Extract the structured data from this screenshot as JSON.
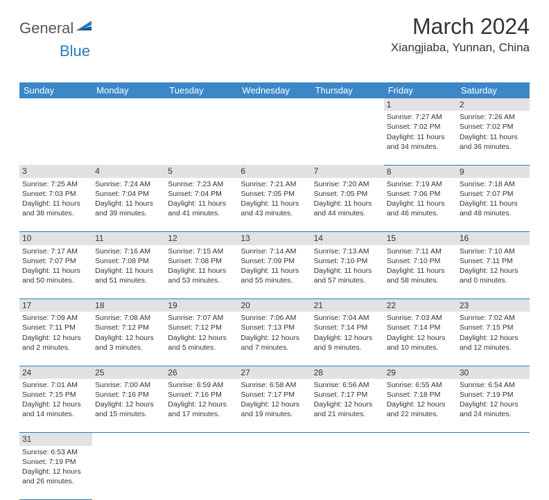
{
  "logo": {
    "part1": "General",
    "part2": "Blue"
  },
  "title": "March 2024",
  "location": "Xiangjiaba, Yunnan, China",
  "colors": {
    "header_bg": "#3b87c8",
    "header_fg": "#ffffff",
    "daynum_bg": "#e2e2e2",
    "rule": "#2a7ab9",
    "logo_accent": "#2a7ab9"
  },
  "weekdays": [
    "Sunday",
    "Monday",
    "Tuesday",
    "Wednesday",
    "Thursday",
    "Friday",
    "Saturday"
  ],
  "weeks": [
    [
      null,
      null,
      null,
      null,
      null,
      {
        "n": "1",
        "sr": "Sunrise: 7:27 AM",
        "ss": "Sunset: 7:02 PM",
        "dl": "Daylight: 11 hours and 34 minutes."
      },
      {
        "n": "2",
        "sr": "Sunrise: 7:26 AM",
        "ss": "Sunset: 7:02 PM",
        "dl": "Daylight: 11 hours and 36 minutes."
      }
    ],
    [
      {
        "n": "3",
        "sr": "Sunrise: 7:25 AM",
        "ss": "Sunset: 7:03 PM",
        "dl": "Daylight: 11 hours and 38 minutes."
      },
      {
        "n": "4",
        "sr": "Sunrise: 7:24 AM",
        "ss": "Sunset: 7:04 PM",
        "dl": "Daylight: 11 hours and 39 minutes."
      },
      {
        "n": "5",
        "sr": "Sunrise: 7:23 AM",
        "ss": "Sunset: 7:04 PM",
        "dl": "Daylight: 11 hours and 41 minutes."
      },
      {
        "n": "6",
        "sr": "Sunrise: 7:21 AM",
        "ss": "Sunset: 7:05 PM",
        "dl": "Daylight: 11 hours and 43 minutes."
      },
      {
        "n": "7",
        "sr": "Sunrise: 7:20 AM",
        "ss": "Sunset: 7:05 PM",
        "dl": "Daylight: 11 hours and 44 minutes."
      },
      {
        "n": "8",
        "sr": "Sunrise: 7:19 AM",
        "ss": "Sunset: 7:06 PM",
        "dl": "Daylight: 11 hours and 46 minutes."
      },
      {
        "n": "9",
        "sr": "Sunrise: 7:18 AM",
        "ss": "Sunset: 7:07 PM",
        "dl": "Daylight: 11 hours and 48 minutes."
      }
    ],
    [
      {
        "n": "10",
        "sr": "Sunrise: 7:17 AM",
        "ss": "Sunset: 7:07 PM",
        "dl": "Daylight: 11 hours and 50 minutes."
      },
      {
        "n": "11",
        "sr": "Sunrise: 7:16 AM",
        "ss": "Sunset: 7:08 PM",
        "dl": "Daylight: 11 hours and 51 minutes."
      },
      {
        "n": "12",
        "sr": "Sunrise: 7:15 AM",
        "ss": "Sunset: 7:08 PM",
        "dl": "Daylight: 11 hours and 53 minutes."
      },
      {
        "n": "13",
        "sr": "Sunrise: 7:14 AM",
        "ss": "Sunset: 7:09 PM",
        "dl": "Daylight: 11 hours and 55 minutes."
      },
      {
        "n": "14",
        "sr": "Sunrise: 7:13 AM",
        "ss": "Sunset: 7:10 PM",
        "dl": "Daylight: 11 hours and 57 minutes."
      },
      {
        "n": "15",
        "sr": "Sunrise: 7:11 AM",
        "ss": "Sunset: 7:10 PM",
        "dl": "Daylight: 11 hours and 58 minutes."
      },
      {
        "n": "16",
        "sr": "Sunrise: 7:10 AM",
        "ss": "Sunset: 7:11 PM",
        "dl": "Daylight: 12 hours and 0 minutes."
      }
    ],
    [
      {
        "n": "17",
        "sr": "Sunrise: 7:09 AM",
        "ss": "Sunset: 7:11 PM",
        "dl": "Daylight: 12 hours and 2 minutes."
      },
      {
        "n": "18",
        "sr": "Sunrise: 7:08 AM",
        "ss": "Sunset: 7:12 PM",
        "dl": "Daylight: 12 hours and 3 minutes."
      },
      {
        "n": "19",
        "sr": "Sunrise: 7:07 AM",
        "ss": "Sunset: 7:12 PM",
        "dl": "Daylight: 12 hours and 5 minutes."
      },
      {
        "n": "20",
        "sr": "Sunrise: 7:06 AM",
        "ss": "Sunset: 7:13 PM",
        "dl": "Daylight: 12 hours and 7 minutes."
      },
      {
        "n": "21",
        "sr": "Sunrise: 7:04 AM",
        "ss": "Sunset: 7:14 PM",
        "dl": "Daylight: 12 hours and 9 minutes."
      },
      {
        "n": "22",
        "sr": "Sunrise: 7:03 AM",
        "ss": "Sunset: 7:14 PM",
        "dl": "Daylight: 12 hours and 10 minutes."
      },
      {
        "n": "23",
        "sr": "Sunrise: 7:02 AM",
        "ss": "Sunset: 7:15 PM",
        "dl": "Daylight: 12 hours and 12 minutes."
      }
    ],
    [
      {
        "n": "24",
        "sr": "Sunrise: 7:01 AM",
        "ss": "Sunset: 7:15 PM",
        "dl": "Daylight: 12 hours and 14 minutes."
      },
      {
        "n": "25",
        "sr": "Sunrise: 7:00 AM",
        "ss": "Sunset: 7:16 PM",
        "dl": "Daylight: 12 hours and 15 minutes."
      },
      {
        "n": "26",
        "sr": "Sunrise: 6:59 AM",
        "ss": "Sunset: 7:16 PM",
        "dl": "Daylight: 12 hours and 17 minutes."
      },
      {
        "n": "27",
        "sr": "Sunrise: 6:58 AM",
        "ss": "Sunset: 7:17 PM",
        "dl": "Daylight: 12 hours and 19 minutes."
      },
      {
        "n": "28",
        "sr": "Sunrise: 6:56 AM",
        "ss": "Sunset: 7:17 PM",
        "dl": "Daylight: 12 hours and 21 minutes."
      },
      {
        "n": "29",
        "sr": "Sunrise: 6:55 AM",
        "ss": "Sunset: 7:18 PM",
        "dl": "Daylight: 12 hours and 22 minutes."
      },
      {
        "n": "30",
        "sr": "Sunrise: 6:54 AM",
        "ss": "Sunset: 7:19 PM",
        "dl": "Daylight: 12 hours and 24 minutes."
      }
    ],
    [
      {
        "n": "31",
        "sr": "Sunrise: 6:53 AM",
        "ss": "Sunset: 7:19 PM",
        "dl": "Daylight: 12 hours and 26 minutes."
      },
      null,
      null,
      null,
      null,
      null,
      null
    ]
  ]
}
